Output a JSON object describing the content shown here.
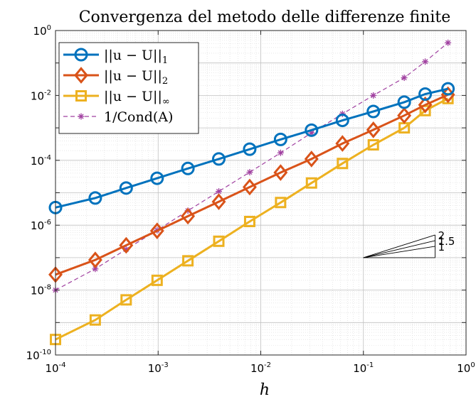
{
  "chart_data": {
    "type": "line",
    "title": "Convergenza del metodo delle differenze finite",
    "xlabel": "h",
    "ylabel": "",
    "xscale": "log",
    "yscale": "log",
    "xlim": [
      0.0001,
      1
    ],
    "ylim": [
      1e-10,
      1
    ],
    "grid": true,
    "legend_position": "top-left",
    "x_ticks": [
      {
        "base": "10",
        "exp": "-4"
      },
      {
        "base": "10",
        "exp": "-3"
      },
      {
        "base": "10",
        "exp": "-2"
      },
      {
        "base": "10",
        "exp": "-1"
      },
      {
        "base": "10",
        "exp": "0"
      }
    ],
    "y_ticks": [
      {
        "base": "10",
        "exp": "-10"
      },
      {
        "base": "10",
        "exp": "-8"
      },
      {
        "base": "10",
        "exp": "-6"
      },
      {
        "base": "10",
        "exp": "-4"
      },
      {
        "base": "10",
        "exp": "-2"
      },
      {
        "base": "10",
        "exp": "0"
      }
    ],
    "series": [
      {
        "name": "||u − U||₁",
        "color": "#0072BD",
        "marker": "circle",
        "style": "solid",
        "x": [
          0.0001,
          0.000244,
          0.000488,
          0.000977,
          0.00195,
          0.0039,
          0.0078,
          0.0156,
          0.0312,
          0.0625,
          0.125,
          0.25,
          0.4,
          0.667
        ],
        "y": [
          3.5e-06,
          6.9e-06,
          1.4e-05,
          2.8e-05,
          5.6e-05,
          0.00011,
          0.00022,
          0.00044,
          0.00085,
          0.0017,
          0.0032,
          0.0062,
          0.011,
          0.016
        ]
      },
      {
        "name": "||u − U||₂",
        "color": "#D95319",
        "marker": "diamond",
        "style": "solid",
        "x": [
          0.0001,
          0.000244,
          0.000488,
          0.000977,
          0.00195,
          0.0039,
          0.0078,
          0.0156,
          0.0312,
          0.0625,
          0.125,
          0.25,
          0.4,
          0.667
        ],
        "y": [
          3e-08,
          8.5e-08,
          2.4e-07,
          6.7e-07,
          1.9e-06,
          5.3e-06,
          1.5e-05,
          4.2e-05,
          0.00011,
          0.00033,
          0.00087,
          0.0024,
          0.0051,
          0.0105
        ]
      },
      {
        "name": "||u − U||∞",
        "color": "#EDB120",
        "marker": "square",
        "style": "solid",
        "x": [
          0.0001,
          0.000244,
          0.000488,
          0.000977,
          0.00195,
          0.0039,
          0.0078,
          0.0156,
          0.0312,
          0.0625,
          0.125,
          0.25,
          0.4,
          0.667
        ],
        "y": [
          3e-10,
          1.2e-09,
          5e-09,
          2e-08,
          8e-08,
          3.2e-07,
          1.3e-06,
          5e-06,
          2e-05,
          8e-05,
          0.0003,
          0.001,
          0.0034,
          0.008
        ]
      },
      {
        "name": "1/Cond(A)",
        "color": "#A040A0",
        "marker": "asterisk",
        "style": "dashed",
        "x": [
          0.0001,
          0.000244,
          0.000488,
          0.000977,
          0.00195,
          0.0039,
          0.0078,
          0.0156,
          0.0312,
          0.0625,
          0.125,
          0.25,
          0.4,
          0.667
        ],
        "y": [
          1e-08,
          4.5e-08,
          1.8e-07,
          7e-07,
          2.8e-06,
          1.1e-05,
          4.3e-05,
          0.00017,
          0.0007,
          0.0027,
          0.01,
          0.035,
          0.11,
          0.42
        ]
      }
    ],
    "legend_entries": [
      {
        "lhs": "||u − U||",
        "sub": "1"
      },
      {
        "lhs": "||u − U||",
        "sub": "2"
      },
      {
        "lhs": "||u − U||",
        "sub": "∞"
      },
      {
        "lhs": "1/Cond(A)",
        "sub": ""
      }
    ],
    "slope_triangle": {
      "labels": [
        "2",
        "1.5",
        "1"
      ],
      "slopes": [
        2,
        1.5,
        1
      ],
      "x_from": 0.1,
      "x_to": 0.5,
      "y_base": 1e-07
    }
  }
}
